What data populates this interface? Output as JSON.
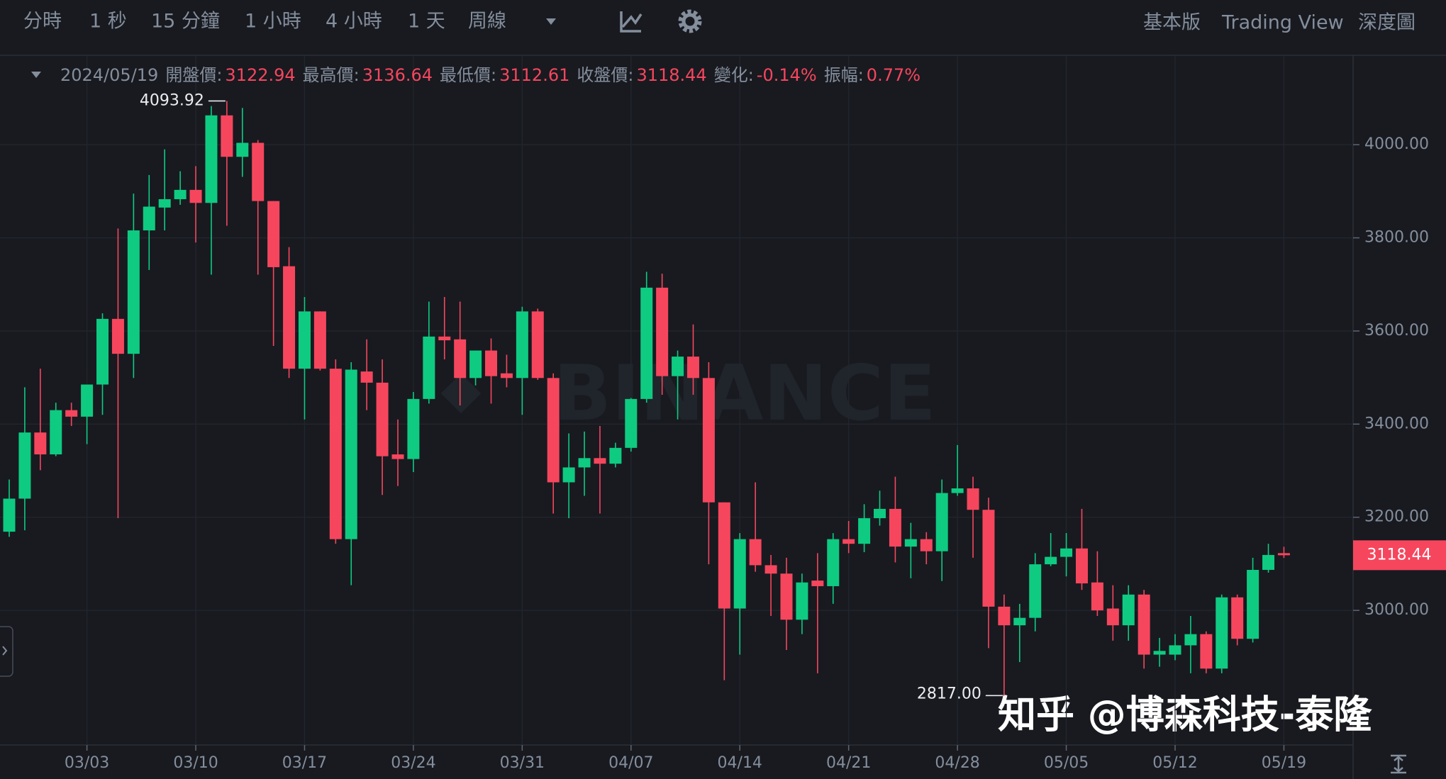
{
  "toolbar": {
    "intervals": [
      "分時",
      "1 秒",
      "15 分鐘",
      "1 小時",
      "4 小時",
      "1 天",
      "周線"
    ],
    "active": 5,
    "views": [
      "基本版",
      "Trading View",
      "深度圖"
    ],
    "active_view": 0
  },
  "chart_data": {
    "type": "candlestick",
    "categories": [
      null,
      null,
      null,
      null,
      null,
      "03/03",
      null,
      null,
      null,
      null,
      null,
      null,
      "03/10",
      null,
      null,
      null,
      null,
      null,
      null,
      "03/17",
      null,
      null,
      null,
      null,
      null,
      null,
      "03/24",
      null,
      null,
      null,
      null,
      null,
      null,
      "03/31",
      null,
      null,
      null,
      null,
      null,
      null,
      "04/07",
      null,
      null,
      null,
      null,
      null,
      null,
      "04/14",
      null,
      null,
      null,
      null,
      null,
      null,
      "04/21",
      null,
      null,
      null,
      null,
      null,
      null,
      "04/28",
      null,
      null,
      null,
      null,
      null,
      null,
      "05/05",
      null,
      null,
      null,
      null,
      null,
      null,
      "05/12",
      null,
      null,
      null,
      null,
      null,
      null,
      "05/19"
    ],
    "open": [
      3169,
      3240,
      3382,
      3335,
      3430,
      3416,
      3485,
      3626,
      3551,
      3816,
      3865,
      3883,
      3903,
      3875,
      4063,
      3974,
      4004,
      3879,
      3739,
      3519,
      3642,
      3519,
      3153,
      3513,
      3489,
      3335,
      3325,
      3454,
      3588,
      3582,
      3499,
      3558,
      3509,
      3499,
      3642,
      3499,
      3275,
      3307,
      3327,
      3315,
      3349,
      3454,
      3693,
      3503,
      3545,
      3499,
      3232,
      3004,
      3153,
      3097,
      3079,
      2980,
      3064,
      3052,
      3153,
      3143,
      3198,
      3218,
      3137,
      3153,
      3127,
      3252,
      3262,
      3216,
      3008,
      2968,
      2984,
      3099,
      3115,
      3133,
      3060,
      3004,
      2968,
      3034,
      2905,
      2905,
      2925,
      2949,
      2875,
      3028,
      2939,
      3087,
      3122.94
    ],
    "high": [
      3281,
      3479,
      3519,
      3446,
      3446,
      3485,
      3638,
      3820,
      3895,
      3935,
      3990,
      3943,
      3954,
      4083,
      4093.92,
      4079,
      4010,
      3879,
      3780,
      3673,
      3642,
      3539,
      3533,
      3582,
      3539,
      3410,
      3469,
      3663,
      3673,
      3663,
      3558,
      3584,
      3549,
      3652,
      3648,
      3509,
      3380,
      3384,
      3396,
      3360,
      3456,
      3727,
      3723,
      3558,
      3614,
      3533,
      3232,
      3166,
      3275,
      3119,
      3113,
      3079,
      3123,
      3166,
      3192,
      3228,
      3257,
      3287,
      3188,
      3168,
      3281,
      3355,
      3287,
      3242,
      3034,
      3014,
      3123,
      3166,
      3166,
      3218,
      3127,
      3054,
      3054,
      3044,
      2941,
      2949,
      2988,
      2955,
      3034,
      3034,
      3113,
      3143,
      3136.64
    ],
    "low": [
      3158,
      3172,
      3301,
      3331,
      3396,
      3357,
      3420,
      3198,
      3499,
      3731,
      3816,
      3871,
      3790,
      3721,
      3826,
      3931,
      3721,
      3568,
      3499,
      3410,
      3515,
      3143,
      3054,
      3430,
      3248,
      3267,
      3297,
      3444,
      3539,
      3440,
      3483,
      3444,
      3479,
      3420,
      3495,
      3208,
      3198,
      3246,
      3208,
      3307,
      3341,
      3446,
      3463,
      3410,
      3463,
      3099,
      2850,
      2905,
      3083,
      2988,
      2915,
      2949,
      2865,
      3014,
      3123,
      3125,
      3182,
      3103,
      3069,
      3099,
      3063,
      3246,
      3113,
      2919,
      2817,
      2889,
      2955,
      3095,
      3073,
      3044,
      2988,
      2935,
      2935,
      2875,
      2879,
      2893,
      2865,
      2865,
      2865,
      2925,
      2931,
      3081,
      3112.61
    ],
    "close": [
      3240,
      3382,
      3335,
      3430,
      3416,
      3485,
      3626,
      3551,
      3816,
      3867,
      3883,
      3903,
      3875,
      4063,
      3974,
      4004,
      3879,
      3737,
      3519,
      3642,
      3519,
      3153,
      3517,
      3489,
      3331,
      3325,
      3454,
      3588,
      3580,
      3499,
      3558,
      3503,
      3499,
      3642,
      3499,
      3275,
      3307,
      3327,
      3315,
      3349,
      3454,
      3693,
      3503,
      3545,
      3499,
      3232,
      3004,
      3153,
      3097,
      3079,
      2980,
      3060,
      3052,
      3153,
      3143,
      3198,
      3218,
      3137,
      3153,
      3127,
      3252,
      3262,
      3216,
      3008,
      2968,
      2984,
      3099,
      3115,
      3133,
      3058,
      3000,
      2968,
      3034,
      2905,
      2913,
      2925,
      2949,
      2875,
      3028,
      2939,
      3087,
      3119,
      3118.44
    ],
    "up_color": "#0ecb81",
    "down_color": "#f6465d",
    "ylim": [
      2711,
      4192
    ],
    "yticks": [
      {
        "value": 3000,
        "label": "3000.00"
      },
      {
        "value": 3200,
        "label": "3200.00"
      },
      {
        "value": 3400,
        "label": "3400.00"
      },
      {
        "value": 3600,
        "label": "3600.00"
      },
      {
        "value": 3800,
        "label": "3800.00"
      },
      {
        "value": 4000,
        "label": "4000.00"
      }
    ],
    "grid": true,
    "legend": {
      "date": "2024/05/19",
      "labels": [
        "開盤價:",
        "最高價:",
        "最低價:",
        "收盤價:",
        "變化:",
        "振幅:"
      ],
      "change": "-0.14%",
      "amplitude": "0.77%"
    },
    "low_label": "2817.00",
    "watermark": "BINANCE"
  },
  "credit": "知乎 @博森科技-泰隆"
}
